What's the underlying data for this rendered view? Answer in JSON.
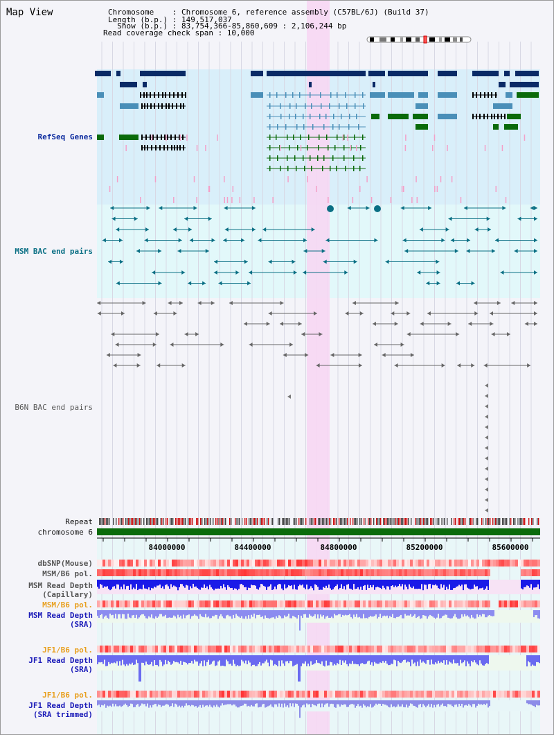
{
  "title": "Map View",
  "info": {
    "line1": "Chromosome    : Chromosome 6, reference assembly (C57BL/6J) (Build 37)",
    "line2": "Length (b.p.) : 149,517,037",
    "line3": "  Show (b.p.) : 83,754,366-85,860,609 : 2,106,244 bp",
    "line4": "Read coverage check span : 10,000"
  },
  "tracks": {
    "refseq": "RefSeq Genes",
    "msm_bac": "MSM BAC end pairs",
    "b6n_bac": "B6N BAC end pairs",
    "repeat": "Repeat",
    "chromosome": "chromosome 6"
  },
  "axis": {
    "ticks": [
      "84000000",
      "84400000",
      "84800000",
      "85200000",
      "85600000"
    ]
  },
  "lower_tracks": [
    {
      "line1": "dbSNP(Mouse)",
      "line2": "",
      "color": "#555555"
    },
    {
      "line1": "MSM/B6 pol.",
      "line2": "",
      "color": "#555555"
    },
    {
      "line1": "MSM Read Depth",
      "line2": "(Capillary)",
      "color": "#555555"
    },
    {
      "line1": "MSM/B6 pol.",
      "line2": "",
      "color": "#e8a020"
    },
    {
      "line1": "MSM Read Depth",
      "line2": "(SRA)",
      "color": "#1a1ab8"
    },
    {
      "line1": "JF1/B6 pol.",
      "line2": "",
      "color": "#e8a020"
    },
    {
      "line1": "JF1 Read Depth",
      "line2": "(SRA)",
      "color": "#1a1ab8"
    },
    {
      "line1": "JF1/B6 pol.",
      "line2": "",
      "color": "#e8a020"
    },
    {
      "line1": "JF1 Read Depth",
      "line2": "(SRA trimmed)",
      "color": "#1a1ab8"
    }
  ],
  "colors": {
    "highlight": "#f7d7f3",
    "refseq_bg": "#d9effa",
    "bac_bg": "#e2f8fa",
    "gene_dark": "#0a2a66",
    "gene_mid": "#4a8fb8",
    "gene_green": "#0a6a0a",
    "chromosome": "#0b6b0b"
  }
}
